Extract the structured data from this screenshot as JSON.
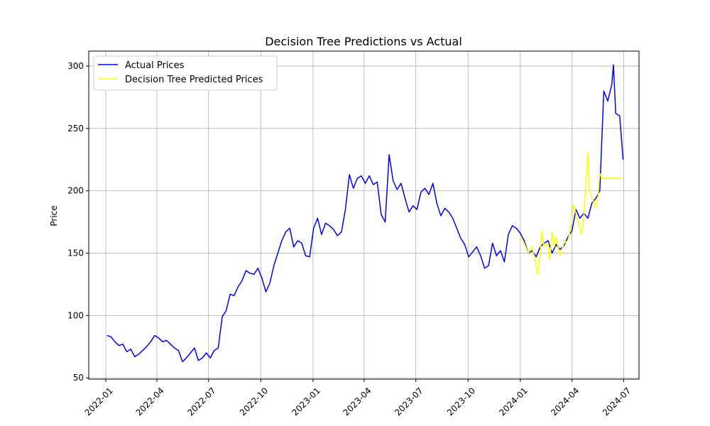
{
  "chart_data": {
    "type": "line",
    "title": "Decision Tree Predictions vs Actual",
    "xlabel": "",
    "ylabel": "Price",
    "ylim": [
      49,
      312
    ],
    "xlim": [
      "2021-12-02",
      "2024-07-28"
    ],
    "y_ticks": [
      50,
      100,
      150,
      200,
      250,
      300
    ],
    "x_ticks": [
      "2022-01",
      "2022-04",
      "2022-07",
      "2022-10",
      "2023-01",
      "2023-04",
      "2023-07",
      "2023-10",
      "2024-01",
      "2024-04",
      "2024-07"
    ],
    "grid": true,
    "legend": "upper-left",
    "series": [
      {
        "name": "Actual Prices",
        "color": "#0000ff",
        "points": [
          [
            "2022-01-03",
            84
          ],
          [
            "2022-01-10",
            83
          ],
          [
            "2022-01-17",
            79
          ],
          [
            "2022-01-24",
            76
          ],
          [
            "2022-01-31",
            77
          ],
          [
            "2022-02-07",
            71
          ],
          [
            "2022-02-14",
            73
          ],
          [
            "2022-02-21",
            67
          ],
          [
            "2022-02-28",
            69
          ],
          [
            "2022-03-07",
            72
          ],
          [
            "2022-03-14",
            75
          ],
          [
            "2022-03-21",
            79
          ],
          [
            "2022-03-28",
            84
          ],
          [
            "2022-04-04",
            82
          ],
          [
            "2022-04-11",
            79
          ],
          [
            "2022-04-18",
            80
          ],
          [
            "2022-04-25",
            77
          ],
          [
            "2022-05-02",
            74
          ],
          [
            "2022-05-09",
            72
          ],
          [
            "2022-05-16",
            63
          ],
          [
            "2022-05-23",
            66
          ],
          [
            "2022-05-30",
            70
          ],
          [
            "2022-06-06",
            74
          ],
          [
            "2022-06-13",
            64
          ],
          [
            "2022-06-20",
            66
          ],
          [
            "2022-06-27",
            70
          ],
          [
            "2022-07-04",
            66
          ],
          [
            "2022-07-11",
            72
          ],
          [
            "2022-07-18",
            74
          ],
          [
            "2022-07-25",
            99
          ],
          [
            "2022-08-01",
            104
          ],
          [
            "2022-08-08",
            117
          ],
          [
            "2022-08-15",
            116
          ],
          [
            "2022-08-22",
            123
          ],
          [
            "2022-08-29",
            128
          ],
          [
            "2022-09-05",
            136
          ],
          [
            "2022-09-12",
            134
          ],
          [
            "2022-09-19",
            133
          ],
          [
            "2022-09-26",
            138
          ],
          [
            "2022-10-03",
            130
          ],
          [
            "2022-10-10",
            119
          ],
          [
            "2022-10-17",
            126
          ],
          [
            "2022-10-24",
            140
          ],
          [
            "2022-10-31",
            150
          ],
          [
            "2022-11-07",
            160
          ],
          [
            "2022-11-14",
            167
          ],
          [
            "2022-11-21",
            170
          ],
          [
            "2022-11-28",
            155
          ],
          [
            "2022-12-05",
            160
          ],
          [
            "2022-12-12",
            158
          ],
          [
            "2022-12-19",
            148
          ],
          [
            "2022-12-26",
            147
          ],
          [
            "2023-01-02",
            170
          ],
          [
            "2023-01-09",
            178
          ],
          [
            "2023-01-16",
            165
          ],
          [
            "2023-01-23",
            174
          ],
          [
            "2023-01-30",
            172
          ],
          [
            "2023-02-06",
            169
          ],
          [
            "2023-02-13",
            164
          ],
          [
            "2023-02-20",
            167
          ],
          [
            "2023-02-27",
            185
          ],
          [
            "2023-03-06",
            213
          ],
          [
            "2023-03-13",
            202
          ],
          [
            "2023-03-20",
            210
          ],
          [
            "2023-03-27",
            212
          ],
          [
            "2023-04-03",
            206
          ],
          [
            "2023-04-10",
            212
          ],
          [
            "2023-04-17",
            205
          ],
          [
            "2023-04-24",
            207
          ],
          [
            "2023-05-01",
            181
          ],
          [
            "2023-05-08",
            175
          ],
          [
            "2023-05-15",
            229
          ],
          [
            "2023-05-22",
            208
          ],
          [
            "2023-05-29",
            201
          ],
          [
            "2023-06-05",
            206
          ],
          [
            "2023-06-12",
            194
          ],
          [
            "2023-06-19",
            183
          ],
          [
            "2023-06-26",
            188
          ],
          [
            "2023-07-03",
            185
          ],
          [
            "2023-07-10",
            199
          ],
          [
            "2023-07-17",
            202
          ],
          [
            "2023-07-24",
            197
          ],
          [
            "2023-07-31",
            206
          ],
          [
            "2023-08-07",
            190
          ],
          [
            "2023-08-14",
            180
          ],
          [
            "2023-08-21",
            186
          ],
          [
            "2023-08-28",
            183
          ],
          [
            "2023-09-04",
            178
          ],
          [
            "2023-09-11",
            170
          ],
          [
            "2023-09-18",
            162
          ],
          [
            "2023-09-25",
            157
          ],
          [
            "2023-10-02",
            147
          ],
          [
            "2023-10-09",
            151
          ],
          [
            "2023-10-16",
            155
          ],
          [
            "2023-10-23",
            148
          ],
          [
            "2023-10-30",
            138
          ],
          [
            "2023-11-06",
            140
          ],
          [
            "2023-11-13",
            158
          ],
          [
            "2023-11-20",
            148
          ],
          [
            "2023-11-27",
            152
          ],
          [
            "2023-12-04",
            143
          ],
          [
            "2023-12-11",
            165
          ],
          [
            "2023-12-18",
            172
          ],
          [
            "2023-12-25",
            170
          ],
          [
            "2024-01-01",
            166
          ],
          [
            "2024-01-08",
            160
          ],
          [
            "2024-01-15",
            150
          ],
          [
            "2024-01-22",
            152
          ],
          [
            "2024-01-29",
            147
          ],
          [
            "2024-02-05",
            155
          ],
          [
            "2024-02-12",
            158
          ],
          [
            "2024-02-19",
            160
          ],
          [
            "2024-02-26",
            150
          ],
          [
            "2024-03-04",
            157
          ],
          [
            "2024-03-11",
            153
          ],
          [
            "2024-03-18",
            156
          ],
          [
            "2024-03-25",
            163
          ],
          [
            "2024-04-01",
            168
          ],
          [
            "2024-04-08",
            185
          ],
          [
            "2024-04-15",
            178
          ],
          [
            "2024-04-22",
            182
          ],
          [
            "2024-04-29",
            178
          ],
          [
            "2024-05-06",
            190
          ],
          [
            "2024-05-13",
            194
          ],
          [
            "2024-05-20",
            200
          ],
          [
            "2024-05-27",
            280
          ],
          [
            "2024-06-03",
            272
          ],
          [
            "2024-06-10",
            285
          ],
          [
            "2024-06-13",
            301
          ],
          [
            "2024-06-17",
            262
          ],
          [
            "2024-06-24",
            260
          ],
          [
            "2024-06-30",
            225
          ]
        ]
      },
      {
        "name": "Decision Tree Predicted Prices",
        "color": "#ffff00",
        "points": [
          [
            "2024-01-01",
            163
          ],
          [
            "2024-01-08",
            158
          ],
          [
            "2024-01-15",
            150
          ],
          [
            "2024-01-22",
            155
          ],
          [
            "2024-01-29",
            140
          ],
          [
            "2024-02-01",
            133
          ],
          [
            "2024-02-05",
            150
          ],
          [
            "2024-02-08",
            168
          ],
          [
            "2024-02-12",
            155
          ],
          [
            "2024-02-19",
            158
          ],
          [
            "2024-02-22",
            145
          ],
          [
            "2024-02-26",
            167
          ],
          [
            "2024-03-01",
            155
          ],
          [
            "2024-03-04",
            163
          ],
          [
            "2024-03-11",
            148
          ],
          [
            "2024-03-18",
            158
          ],
          [
            "2024-03-25",
            160
          ],
          [
            "2024-04-01",
            175
          ],
          [
            "2024-04-04",
            189
          ],
          [
            "2024-04-08",
            182
          ],
          [
            "2024-04-15",
            170
          ],
          [
            "2024-04-18",
            165
          ],
          [
            "2024-04-22",
            180
          ],
          [
            "2024-04-29",
            231
          ],
          [
            "2024-05-02",
            200
          ],
          [
            "2024-05-06",
            195
          ],
          [
            "2024-05-13",
            186
          ],
          [
            "2024-05-17",
            196
          ],
          [
            "2024-05-20",
            214
          ],
          [
            "2024-05-24",
            210
          ],
          [
            "2024-06-30",
            210
          ]
        ]
      }
    ]
  }
}
